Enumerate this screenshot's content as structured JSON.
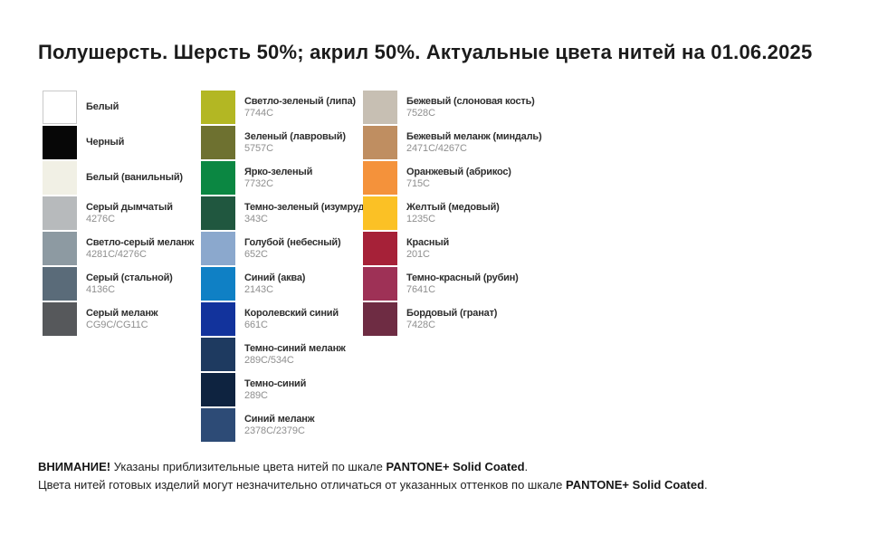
{
  "title": "Полушерсть. Шерсть 50%; акрил 50%. Актуальные цвета нитей на 01.06.2025",
  "columns": [
    {
      "id": "neutrals",
      "items": [
        {
          "name": "Белый",
          "code": "",
          "color": "#ffffff",
          "border": "#c9c9c9"
        },
        {
          "name": "Черный",
          "code": "",
          "color": "#070707"
        },
        {
          "name": "Белый (ванильный)",
          "code": "",
          "color": "#f1f0e5"
        },
        {
          "name": "Серый дымчатый",
          "code": "4276C",
          "color": "#b7babc"
        },
        {
          "name": "Светло-серый меланж",
          "code": "4281C/4276C",
          "color": "#8d9aa2"
        },
        {
          "name": "Серый (стальной)",
          "code": "4136C",
          "color": "#5a6b79"
        },
        {
          "name": "Серый меланж",
          "code": "CG9C/CG11C",
          "color": "#56585b"
        }
      ]
    },
    {
      "id": "greens-blues",
      "items": [
        {
          "name": "Светло-зеленый (липа)",
          "code": "7744C",
          "color": "#b3b723"
        },
        {
          "name": "Зеленый (лавровый)",
          "code": "5757C",
          "color": "#6e7130"
        },
        {
          "name": "Ярко-зеленый",
          "code": "7732C",
          "color": "#0b8742"
        },
        {
          "name": "Темно-зеленый (изумруд)",
          "code": "343C",
          "color": "#20573f"
        },
        {
          "name": "Голубой (небесный)",
          "code": "652C",
          "color": "#8ba8cd"
        },
        {
          "name": "Синий (аква)",
          "code": "2143C",
          "color": "#0f80c5"
        },
        {
          "name": "Королевский синий",
          "code": "661C",
          "color": "#12339c"
        },
        {
          "name": "Темно-синий меланж",
          "code": "289C/534C",
          "color": "#1e3a60"
        },
        {
          "name": "Темно-синий",
          "code": "289C",
          "color": "#0e2340"
        },
        {
          "name": "Синий меланж",
          "code": "2378C/2379C",
          "color": "#2d4b76"
        }
      ]
    },
    {
      "id": "warm",
      "items": [
        {
          "name": "Бежевый (слоновая кость)",
          "code": "7528C",
          "color": "#c7bfb3"
        },
        {
          "name": "Бежевый меланж (миндаль)",
          "code": "2471C/4267C",
          "color": "#bf8e61"
        },
        {
          "name": "Оранжевый (абрикос)",
          "code": "715C",
          "color": "#f4923b"
        },
        {
          "name": "Желтый (медовый)",
          "code": "1235C",
          "color": "#fbc125"
        },
        {
          "name": "Красный",
          "code": "201C",
          "color": "#a62138"
        },
        {
          "name": "Темно-красный (рубин)",
          "code": "7641C",
          "color": "#9e3156"
        },
        {
          "name": "Бордовый (гранат)",
          "code": "7428C",
          "color": "#6e2c43"
        }
      ]
    }
  ],
  "footer": {
    "line1": [
      {
        "text": "ВНИМАНИЕ!",
        "bold": true
      },
      {
        "text": " Указаны приблизительные цвета нитей по шкале ",
        "bold": false
      },
      {
        "text": "PANTONE+ Solid Coated",
        "bold": true
      },
      {
        "text": ".",
        "bold": false
      }
    ],
    "line2": [
      {
        "text": "Цвета нитей готовых изделий могут незначительно отличаться от указанных оттенков по шкале ",
        "bold": false
      },
      {
        "text": "PANTONE+ Solid Coated",
        "bold": true
      },
      {
        "text": ".",
        "bold": false
      }
    ]
  }
}
